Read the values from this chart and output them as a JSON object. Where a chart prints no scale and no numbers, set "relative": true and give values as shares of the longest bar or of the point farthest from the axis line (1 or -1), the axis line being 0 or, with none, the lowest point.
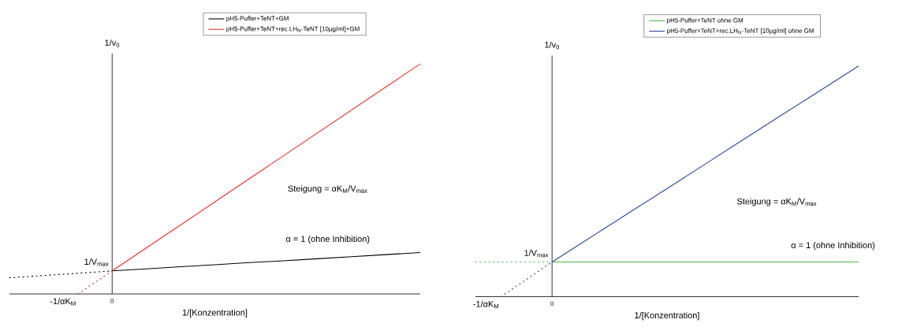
{
  "chart_data": [
    {
      "type": "line",
      "relative": true,
      "xlabel": "1/[Konzentration]",
      "ylabel": "1/v$_{0}$",
      "legend": "top",
      "categories": [
        null,
        null,
        null,
        null,
        null,
        null,
        null,
        null,
        null,
        null,
        null,
        null,
        null
      ],
      "annotations": [
        "Steigung = αK$_{M}$/V$_{max}$",
        "α = 1 (ohne Inhibition)",
        "1/V$_{max}$",
        "-1/αK$_{M}$",
        "0"
      ],
      "series": [
        {
          "name": "pH5-Puffer+TeNT+GM",
          "color": "#000000",
          "values": [
            null,
            null,
            null,
            0.1,
            0.109,
            0.118,
            0.127,
            0.136,
            0.144,
            0.153,
            0.162,
            0.171,
            0.18
          ]
        },
        {
          "name": "pH5-Puffer+TeNT+rec.LH$_{N}$-TeNT [10µg/ml]+GM",
          "color": "#e3302a",
          "values": [
            null,
            null,
            null,
            0.1,
            0.2,
            0.3,
            0.4,
            0.5,
            0.6,
            0.7,
            0.8,
            0.9,
            1.0
          ]
        },
        {
          "color": "#000000",
          "values": [
            0.07,
            0.08,
            0.09,
            0.1,
            null,
            null,
            null,
            null,
            null,
            null,
            null,
            null,
            null
          ],
          "line_style": "dotted"
        },
        {
          "color": "#e3302a",
          "values": [
            null,
            null,
            0,
            0.1,
            null,
            null,
            null,
            null,
            null,
            null,
            null,
            null,
            null
          ],
          "line_style": "dotted"
        }
      ]
    },
    {
      "type": "line",
      "relative": true,
      "xlabel": "1/[Konzentration]",
      "ylabel": "1/v$_{0}$",
      "legend": "top",
      "categories": [
        null,
        null,
        null,
        null,
        null,
        null,
        null,
        null,
        null,
        null,
        null,
        null,
        null,
        null,
        null,
        null
      ],
      "annotations": [
        "Steigung = αK$_{M}$/V$_{max}$",
        "α = 1 (ohne Inhibition)",
        "1/V$_{max}$",
        "-1/αK$_{M}$",
        "0"
      ],
      "series": [
        {
          "name": "pH5-Puffer+TeNT ohne GM",
          "color": "#4cb847",
          "values": [
            null,
            null,
            null,
            0.15,
            0.15,
            0.15,
            0.15,
            0.15,
            0.15,
            0.15,
            0.15,
            0.15,
            0.15,
            0.15,
            0.15,
            0.15
          ]
        },
        {
          "name": "pH5-Puffer+TeNT+rec.LH$_{N}$-TeNT [10µg/ml] ohne GM",
          "color": "#2b4a9b",
          "values": [
            null,
            null,
            null,
            0.15,
            0.221,
            0.292,
            0.363,
            0.433,
            0.504,
            0.575,
            0.646,
            0.717,
            0.788,
            0.858,
            0.929,
            1.0
          ]
        },
        {
          "color": "#4cb847",
          "values": [
            0.15,
            0.15,
            0.15,
            0.15,
            null,
            null,
            null,
            null,
            null,
            null,
            null,
            null,
            null,
            null,
            null,
            null
          ],
          "line_style": "dotted"
        },
        {
          "color": "#2b4a9b",
          "values": [
            null,
            0,
            0.075,
            0.15,
            null,
            null,
            null,
            null,
            null,
            null,
            null,
            null,
            null,
            null,
            null,
            null
          ],
          "line_style": "dotted"
        }
      ]
    }
  ]
}
